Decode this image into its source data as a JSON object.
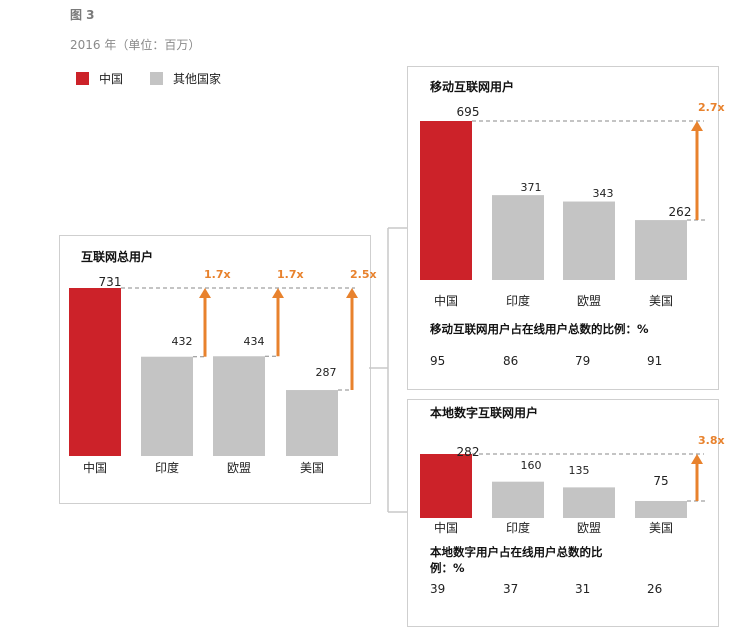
{
  "figure_label": "图 3",
  "subtitle": "2016 年（单位：百万）",
  "legend": [
    {
      "label": "中国",
      "color": "#cc2229"
    },
    {
      "label": "其他国家",
      "color": "#c4c4c4"
    }
  ],
  "colors": {
    "china": "#cc2229",
    "other": "#c4c4c4",
    "arrow": "#e8822d",
    "dashed": "#888888"
  },
  "chart_data": [
    {
      "type": "bar",
      "title": "互联网总用户",
      "categories": [
        "中国",
        "印度",
        "欧盟",
        "美国"
      ],
      "values": [
        731,
        432,
        434,
        287
      ],
      "value_labels": [
        "731",
        "432",
        "434",
        "287"
      ],
      "multipliers": [
        "",
        "1.7x",
        "1.7x",
        "2.5x"
      ]
    },
    {
      "type": "bar",
      "title": "移动互联网用户",
      "categories": [
        "中国",
        "印度",
        "欧盟",
        "美国"
      ],
      "values": [
        695,
        371,
        343,
        262
      ],
      "value_labels": [
        "695",
        "371",
        "343",
        "262"
      ],
      "multipliers": [
        "",
        "",
        "",
        "2.7x"
      ],
      "ratio_label": "移动互联网用户占在线用户总数的比例：%",
      "ratios": [
        "95",
        "86",
        "79",
        "91"
      ]
    },
    {
      "type": "bar",
      "title": "本地数字互联网用户",
      "categories": [
        "中国",
        "印度",
        "欧盟",
        "美国"
      ],
      "values": [
        282,
        160,
        135,
        75
      ],
      "value_labels": [
        "282",
        "160",
        "135",
        "75"
      ],
      "multipliers": [
        "",
        "",
        "",
        "3.8x"
      ],
      "ratio_label": "本地数字用户占在线用户总数的比例：%",
      "ratios": [
        "39",
        "37",
        "31",
        "26"
      ]
    }
  ]
}
